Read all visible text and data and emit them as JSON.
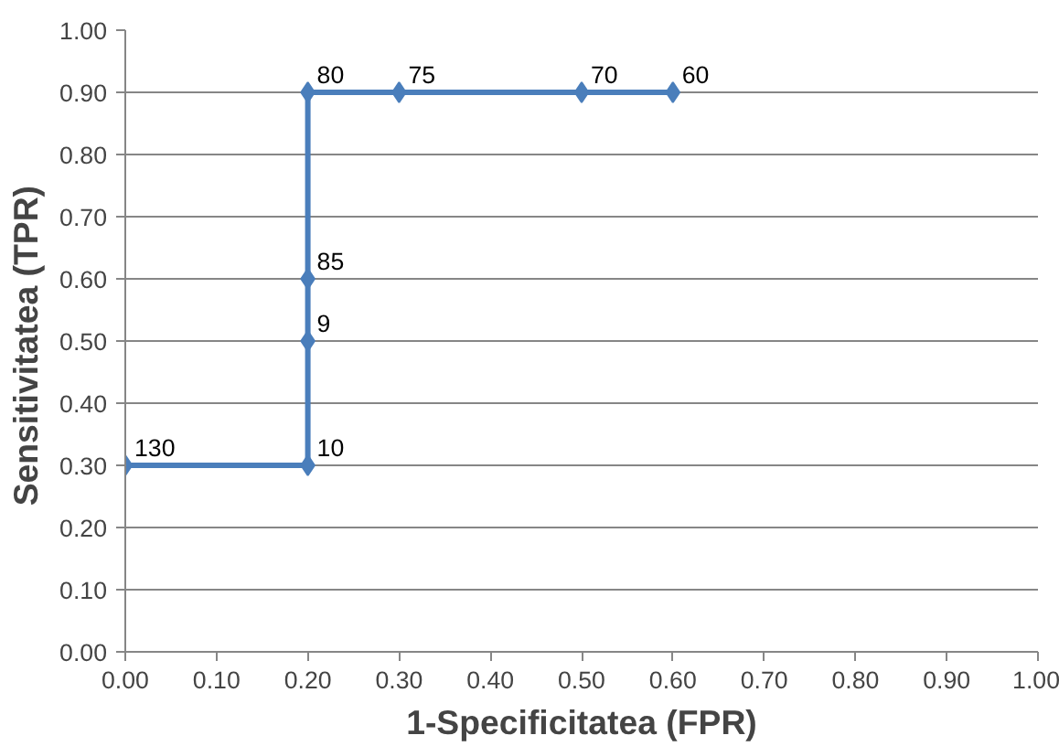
{
  "chart_data": {
    "type": "line",
    "xlabel": "1-Specificitatea (FPR)",
    "ylabel": "Sensitivitatea  (TPR)",
    "x": [
      0,
      0.2,
      0.2,
      0.2,
      0.2,
      0.3,
      0.5,
      0.6
    ],
    "series": [
      {
        "color": "#4a7ebb",
        "values": [
          0.3,
          0.3,
          0.5,
          0.6,
          0.9,
          0.9,
          0.9,
          0.9
        ]
      }
    ],
    "xlim": [
      0,
      1
    ],
    "ylim": [
      0,
      1
    ],
    "xticks": [
      {
        "value": 0,
        "label": "0.00"
      },
      {
        "value": 0.1,
        "label": "0.10"
      },
      {
        "value": 0.2,
        "label": "0.20"
      },
      {
        "value": 0.3,
        "label": "0.30"
      },
      {
        "value": 0.4,
        "label": "0.40"
      },
      {
        "value": 0.5,
        "label": "0.50"
      },
      {
        "value": 0.6,
        "label": "0.60"
      },
      {
        "value": 0.7,
        "label": "0.70"
      },
      {
        "value": 0.8,
        "label": "0.80"
      },
      {
        "value": 0.9,
        "label": "0.90"
      },
      {
        "value": 1,
        "label": "1.00"
      }
    ],
    "yticks": [
      {
        "value": 0,
        "label": "0.00"
      },
      {
        "value": 0.1,
        "label": "0.10"
      },
      {
        "value": 0.2,
        "label": "0.20"
      },
      {
        "value": 0.3,
        "label": "0.30"
      },
      {
        "value": 0.4,
        "label": "0.40"
      },
      {
        "value": 0.5,
        "label": "0.50"
      },
      {
        "value": 0.6,
        "label": "0.60"
      },
      {
        "value": 0.7,
        "label": "0.70"
      },
      {
        "value": 0.8,
        "label": "0.80"
      },
      {
        "value": 0.9,
        "label": "0.90"
      },
      {
        "value": 1,
        "label": "1.00"
      }
    ],
    "grid": "y",
    "marker": "diamond",
    "line_style": "solid",
    "annotations": [
      {
        "text": "130",
        "x": 0,
        "y": 0.3
      },
      {
        "text": "10",
        "x": 0.2,
        "y": 0.3
      },
      {
        "text": "9",
        "x": 0.2,
        "y": 0.5
      },
      {
        "text": "85",
        "x": 0.2,
        "y": 0.6
      },
      {
        "text": "80",
        "x": 0.2,
        "y": 0.9
      },
      {
        "text": "75",
        "x": 0.3,
        "y": 0.9
      },
      {
        "text": "70",
        "x": 0.5,
        "y": 0.9
      },
      {
        "text": "60",
        "x": 0.6,
        "y": 0.9
      }
    ]
  }
}
